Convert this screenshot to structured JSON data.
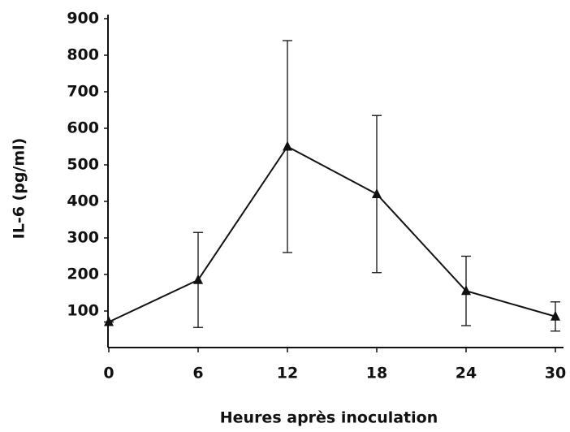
{
  "chart_data": {
    "type": "line",
    "x_label": "Heures après inoculation",
    "y_label": "IL-6 (pg/ml)",
    "x": [
      0,
      6,
      12,
      18,
      24,
      30
    ],
    "series": [
      {
        "values": [
          70,
          185,
          550,
          420,
          155,
          85
        ],
        "errors": [
          0,
          130,
          290,
          215,
          95,
          40
        ],
        "color": "#111111"
      }
    ],
    "xlim": [
      0,
      30
    ],
    "xticks": [
      0,
      6,
      12,
      18,
      24,
      30
    ],
    "ylim": [
      0,
      900
    ],
    "yticks": [
      100,
      200,
      300,
      400,
      500,
      600,
      700,
      800,
      900
    ],
    "grid": false
  }
}
